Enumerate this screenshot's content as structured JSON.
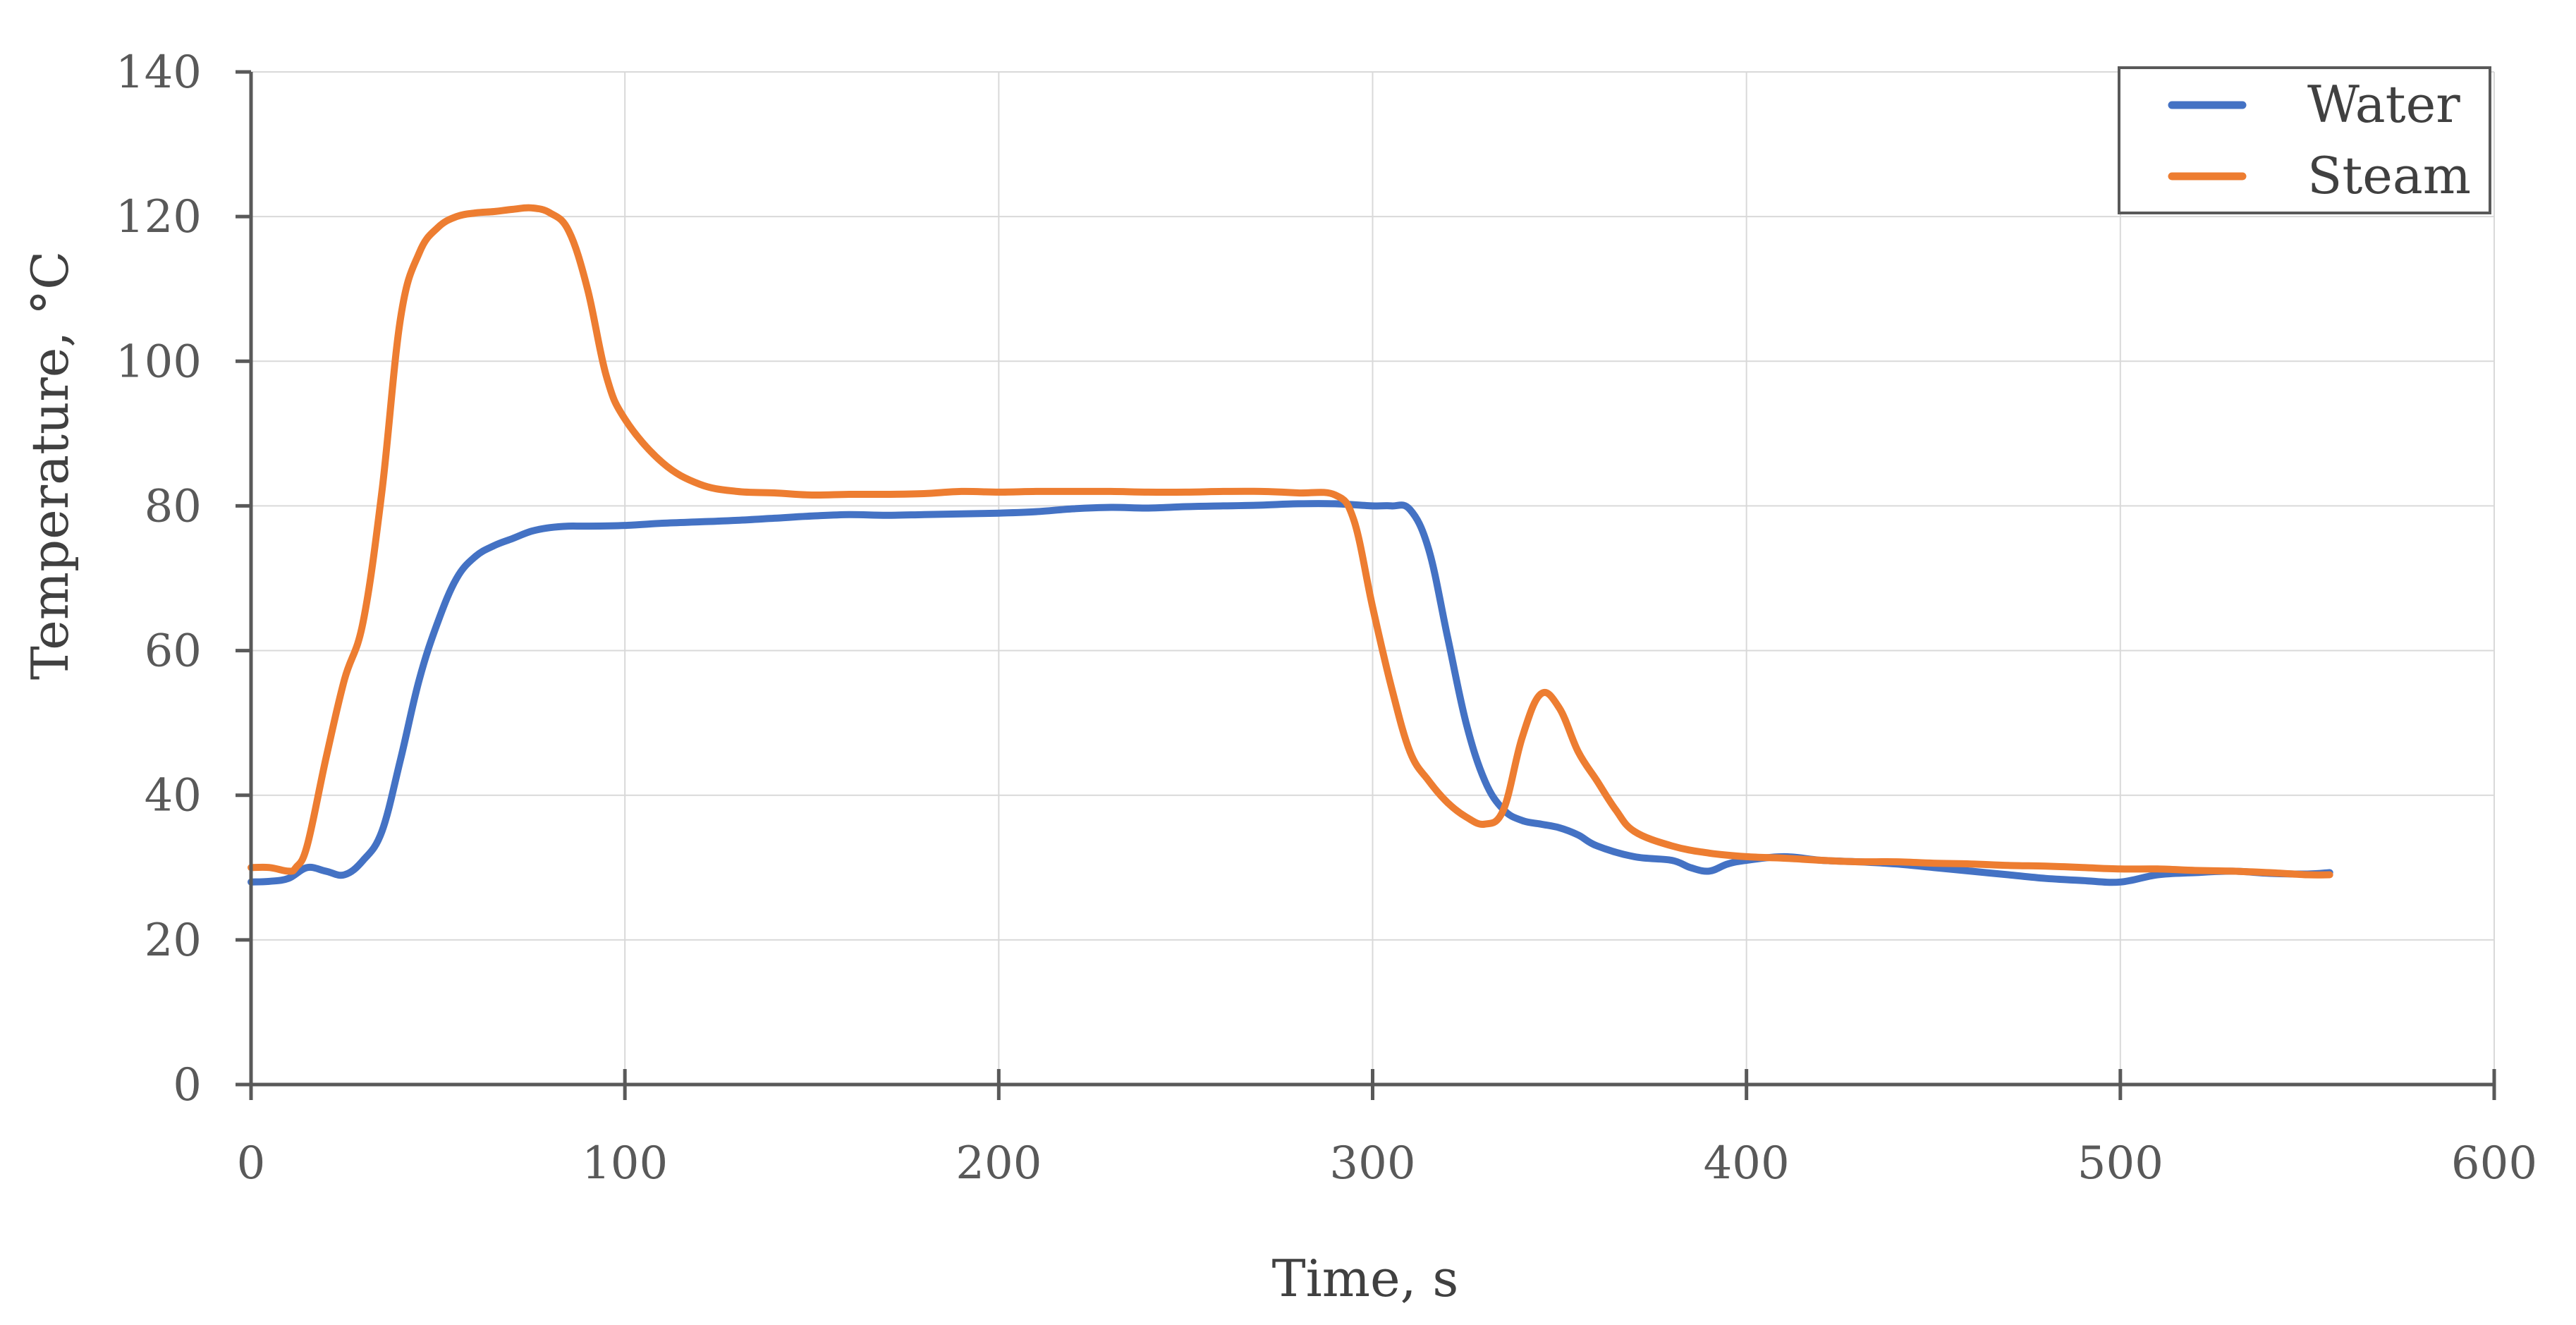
{
  "chart_data": {
    "type": "line",
    "title": "",
    "xlabel": "Time, s",
    "ylabel": "Temperature, °C",
    "xlim": [
      0,
      600
    ],
    "ylim": [
      0,
      140
    ],
    "xticks": [
      0,
      100,
      200,
      300,
      400,
      500,
      600
    ],
    "yticks": [
      0,
      20,
      40,
      60,
      80,
      100,
      120,
      140
    ],
    "grid": true,
    "legend_position": "top-right",
    "series": [
      {
        "name": "Water",
        "color": "#4472c4",
        "x": [
          0,
          5,
          10,
          15,
          20,
          25,
          30,
          35,
          40,
          45,
          50,
          55,
          60,
          65,
          70,
          75,
          80,
          85,
          90,
          100,
          110,
          120,
          130,
          140,
          150,
          160,
          170,
          180,
          190,
          200,
          210,
          220,
          230,
          240,
          250,
          260,
          270,
          280,
          290,
          300,
          305,
          310,
          315,
          320,
          325,
          330,
          335,
          340,
          345,
          350,
          355,
          360,
          370,
          380,
          385,
          390,
          395,
          400,
          410,
          420,
          430,
          440,
          450,
          460,
          470,
          480,
          490,
          500,
          510,
          520,
          530,
          540,
          550,
          556
        ],
        "y": [
          28,
          28.1,
          28.5,
          30,
          29.5,
          29,
          31,
          35,
          45,
          56,
          64,
          70,
          73,
          74.5,
          75.5,
          76.5,
          77,
          77.2,
          77.2,
          77.3,
          77.6,
          77.8,
          78,
          78.3,
          78.6,
          78.8,
          78.7,
          78.8,
          78.9,
          79,
          79.2,
          79.6,
          79.8,
          79.7,
          79.9,
          80,
          80.1,
          80.3,
          80.3,
          80,
          80,
          79.5,
          74,
          62,
          50,
          42,
          38,
          36.5,
          36,
          35.5,
          34.5,
          33,
          31.5,
          31,
          30,
          29.5,
          30.5,
          31,
          31.5,
          31,
          30.8,
          30.5,
          30,
          29.5,
          29,
          28.5,
          28.2,
          28,
          29,
          29.3,
          29.5,
          29.2,
          29.1,
          29.3
        ]
      },
      {
        "name": "Steam",
        "color": "#ed7d31",
        "x": [
          0,
          5,
          10,
          12,
          15,
          20,
          25,
          30,
          35,
          40,
          45,
          50,
          55,
          60,
          65,
          70,
          75,
          80,
          85,
          90,
          95,
          100,
          110,
          120,
          130,
          140,
          150,
          160,
          170,
          180,
          190,
          200,
          210,
          220,
          230,
          240,
          250,
          260,
          270,
          280,
          290,
          295,
          300,
          305,
          310,
          315,
          320,
          325,
          330,
          335,
          340,
          345,
          350,
          355,
          360,
          365,
          370,
          380,
          390,
          400,
          410,
          420,
          430,
          440,
          450,
          460,
          470,
          480,
          490,
          500,
          510,
          520,
          530,
          540,
          550,
          556
        ],
        "y": [
          30,
          30,
          29.5,
          30,
          33,
          45,
          56,
          64,
          82,
          106,
          115,
          118.5,
          120,
          120.5,
          120.7,
          121,
          121.2,
          120.5,
          118,
          110,
          98,
          92,
          86,
          83,
          82,
          81.8,
          81.5,
          81.6,
          81.6,
          81.7,
          82,
          81.9,
          82,
          82,
          82,
          81.9,
          81.9,
          82,
          82,
          81.8,
          81.5,
          78,
          66,
          55,
          46,
          42,
          39,
          37,
          36,
          38,
          48,
          54,
          52,
          46,
          42,
          38,
          35,
          33,
          32,
          31.5,
          31.3,
          31,
          30.8,
          30.8,
          30.6,
          30.5,
          30.3,
          30.2,
          30,
          29.8,
          29.8,
          29.6,
          29.5,
          29.3,
          29,
          29
        ]
      }
    ]
  }
}
